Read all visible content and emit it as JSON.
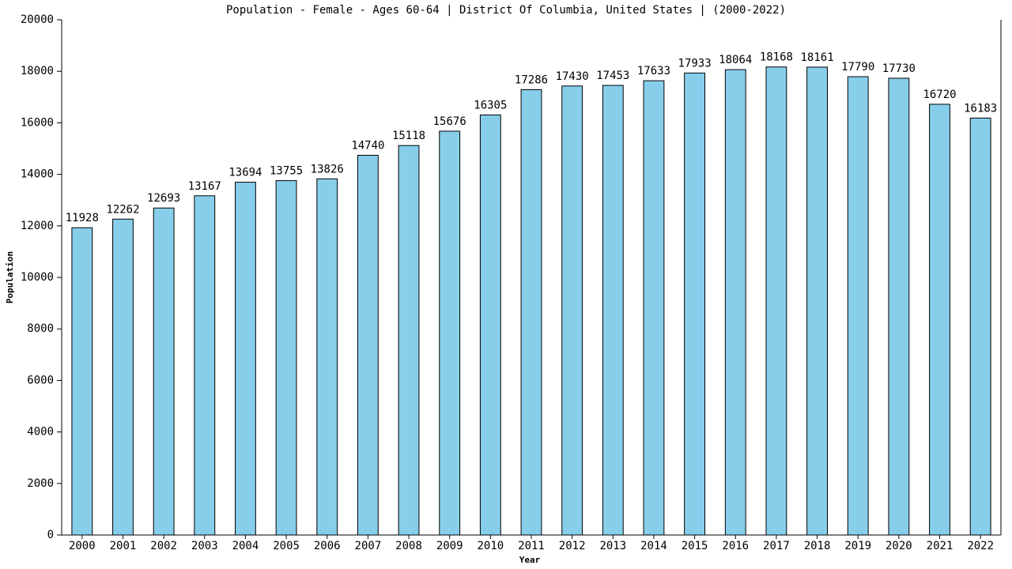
{
  "chart_data": {
    "type": "bar",
    "title": "Population - Female - Ages 60-64 | District Of Columbia, United States |  (2000-2022)",
    "x_label": "Year",
    "y_label": "Population",
    "categories": [
      "2000",
      "2001",
      "2002",
      "2003",
      "2004",
      "2005",
      "2006",
      "2007",
      "2008",
      "2009",
      "2010",
      "2011",
      "2012",
      "2013",
      "2014",
      "2015",
      "2016",
      "2017",
      "2018",
      "2019",
      "2020",
      "2021",
      "2022"
    ],
    "values": [
      11928,
      12262,
      12693,
      13167,
      13694,
      13755,
      13826,
      14740,
      15118,
      15676,
      16305,
      17286,
      17430,
      17453,
      17633,
      17933,
      18064,
      18168,
      18161,
      17790,
      17730,
      16720,
      16183
    ],
    "color": "#87ceeb",
    "ylim": [
      0,
      20000
    ],
    "yticks": [
      0,
      2000,
      4000,
      6000,
      8000,
      10000,
      12000,
      14000,
      16000,
      18000,
      20000
    ],
    "grid": false
  }
}
